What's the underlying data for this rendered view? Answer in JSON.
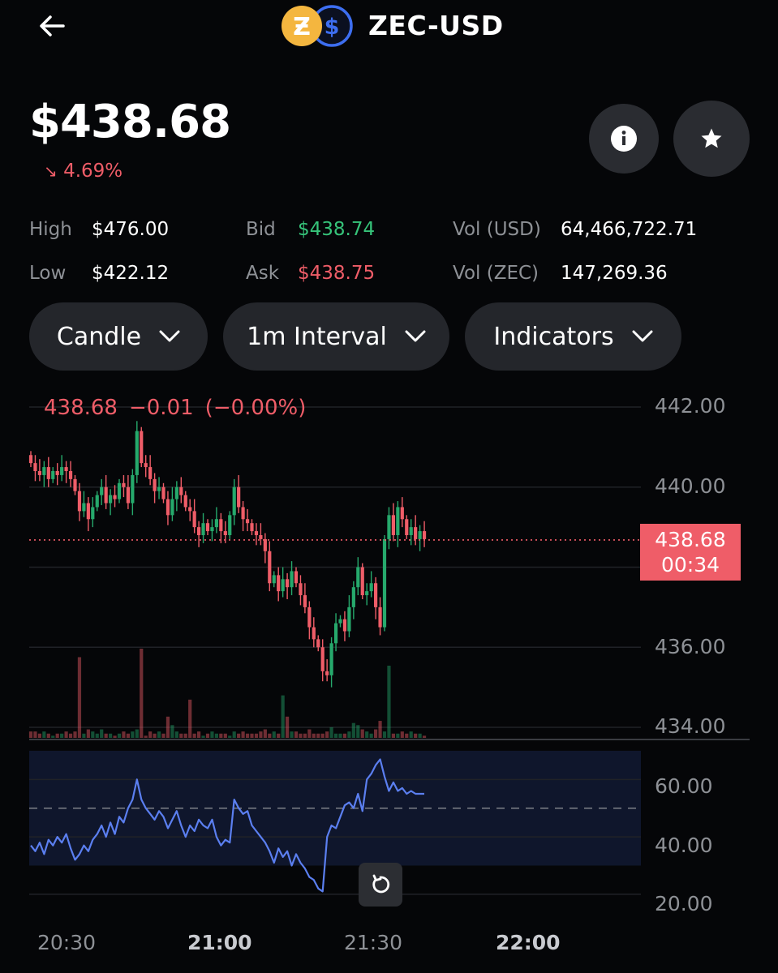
{
  "header": {
    "pair": "ZEC-USD",
    "back_icon": "arrow-left-icon",
    "base_icon": "zcash-icon",
    "quote_icon": "usd-coin-icon"
  },
  "price": {
    "current": "$438.68",
    "change": "4.69%",
    "change_direction": "down"
  },
  "stats": {
    "high_label": "High",
    "high": "$476.00",
    "low_label": "Low",
    "low": "$422.12",
    "bid_label": "Bid",
    "bid": "$438.74",
    "ask_label": "Ask",
    "ask": "$438.75",
    "vol_usd_label": "Vol (USD)",
    "vol_usd": "64,466,722.71",
    "vol_zec_label": "Vol (ZEC)",
    "vol_zec": "147,269.36"
  },
  "controls": {
    "chart_type": "Candle",
    "interval": "1m Interval",
    "indicators": "Indicators"
  },
  "chart_data": [
    {
      "type": "candlestick",
      "title": "",
      "header_price": "438.68",
      "header_change": "−0.01",
      "header_change_pct": "(−0.00%)",
      "y_ticks": [
        "442.00",
        "440.00",
        "436.00",
        "434.00"
      ],
      "ylim": [
        434,
        442
      ],
      "x_ticks": [
        "20:30",
        "21:00",
        "21:30",
        "22:00"
      ],
      "current_price_tag": "438.68",
      "countdown": "00:34",
      "colors": {
        "up": "#26a96c",
        "down": "#ef5d68",
        "rsi_line": "#5b7ff0"
      },
      "close": [
        440.6,
        440.4,
        440.3,
        440.5,
        440.2,
        440.4,
        440.3,
        440.5,
        440.4,
        440.2,
        439.9,
        439.4,
        439.6,
        439.2,
        439.5,
        439.8,
        440.0,
        439.6,
        439.8,
        439.7,
        440.1,
        440.0,
        439.6,
        440.3,
        441.4,
        440.6,
        440.5,
        440.2,
        439.9,
        440.0,
        439.7,
        439.3,
        439.7,
        440.0,
        439.8,
        439.5,
        439.4,
        439.0,
        438.8,
        439.1,
        438.9,
        439.0,
        439.2,
        438.9,
        438.8,
        439.3,
        440.0,
        439.5,
        439.2,
        439.1,
        438.9,
        438.8,
        438.7,
        438.4,
        437.6,
        437.8,
        437.4,
        437.7,
        437.5,
        437.9,
        437.6,
        437.3,
        437.0,
        436.5,
        436.2,
        436.0,
        435.4,
        435.3,
        436.1,
        436.6,
        436.7,
        436.4,
        437.0,
        437.5,
        438.0,
        437.3,
        437.4,
        437.6,
        437.0,
        436.5,
        438.7,
        439.3,
        438.8,
        439.5,
        439.2,
        438.8,
        439.0,
        438.7,
        438.9,
        438.7
      ],
      "volume": [
        3,
        3,
        2,
        3,
        2,
        1,
        2,
        2,
        3,
        2,
        3,
        38,
        2,
        4,
        3,
        2,
        4,
        2,
        2,
        1,
        2,
        3,
        2,
        3,
        4,
        42,
        1,
        3,
        2,
        3,
        2,
        10,
        6,
        3,
        2,
        2,
        18,
        2,
        3,
        1,
        2,
        3,
        2,
        2,
        2,
        1,
        3,
        2,
        3,
        2,
        2,
        2,
        3,
        4,
        2,
        3,
        2,
        20,
        10,
        3,
        3,
        2,
        2,
        4,
        2,
        2,
        2,
        3,
        5,
        2,
        2,
        2,
        3,
        7,
        6,
        4,
        3,
        2,
        4,
        8,
        3,
        34,
        2,
        2,
        3,
        2,
        3,
        2,
        2,
        1
      ]
    },
    {
      "type": "line",
      "title": "",
      "y_ticks": [
        "60.00",
        "40.00",
        "20.00"
      ],
      "ylim": [
        18,
        68
      ],
      "band": [
        30,
        70
      ],
      "midline": 50,
      "values": [
        37,
        35,
        38,
        34,
        39,
        37,
        40,
        38,
        41,
        36,
        32,
        34,
        37,
        35,
        39,
        41,
        44,
        40,
        45,
        41,
        47,
        45,
        50,
        53,
        60,
        53,
        50,
        48,
        46,
        49,
        47,
        43,
        46,
        49,
        44,
        40,
        44,
        42,
        46,
        44,
        43,
        46,
        40,
        37,
        39,
        38,
        53,
        50,
        48,
        49,
        44,
        42,
        40,
        38,
        35,
        31,
        36,
        33,
        35,
        30,
        34,
        31,
        29,
        26,
        25,
        22,
        21,
        40,
        44,
        43,
        47,
        51,
        52,
        50,
        55,
        49,
        60,
        62,
        65,
        67,
        61,
        56,
        59,
        56,
        57,
        55,
        56,
        55,
        55,
        55
      ]
    }
  ]
}
